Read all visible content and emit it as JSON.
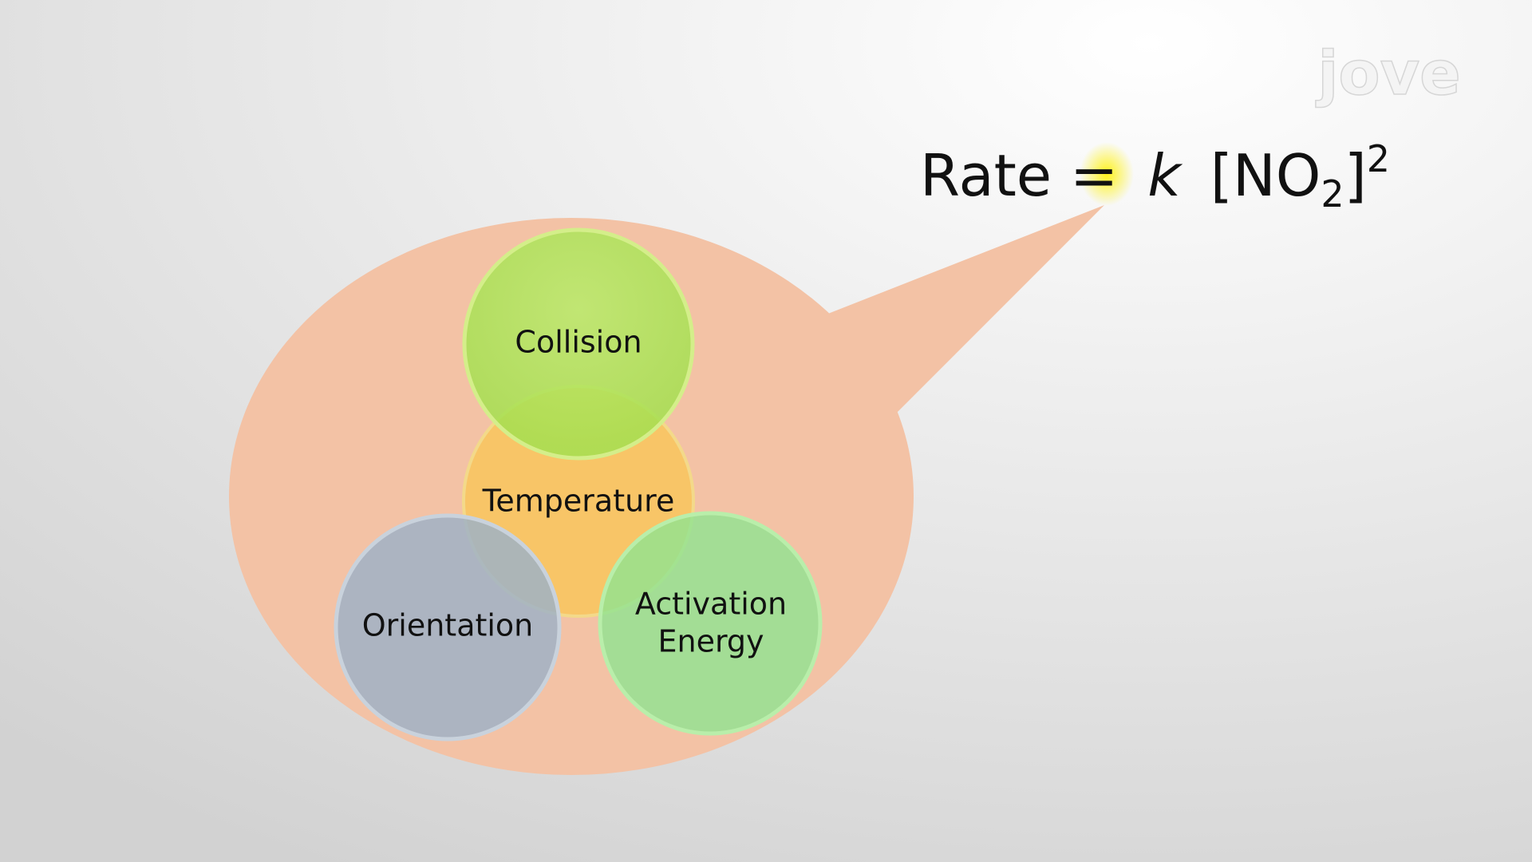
{
  "logo": "jove",
  "equation": {
    "lhs": "Rate =",
    "rate_constant": "k",
    "concentration": "[NO",
    "subscript": "2",
    "bracket_close": "]",
    "exponent": "2"
  },
  "nodes": [
    {
      "label": "Collision"
    },
    {
      "label": "Temperature"
    },
    {
      "label": "Orientation"
    },
    {
      "label": [
        "Activation",
        "Energy"
      ]
    }
  ]
}
